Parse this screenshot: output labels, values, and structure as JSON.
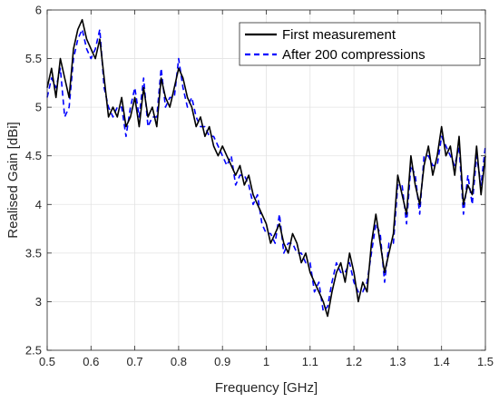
{
  "chart_data": {
    "type": "line",
    "xlabel": "Frequency [GHz]",
    "ylabel": "Realised Gain [dBi]",
    "xlim": [
      0.5,
      1.5
    ],
    "ylim": [
      2.5,
      6
    ],
    "xticks": [
      "0.5",
      "0.6",
      "0.7",
      "0.8",
      "0.9",
      "1",
      "1.1",
      "1.2",
      "1.3",
      "1.4",
      "1.5"
    ],
    "yticks": [
      "2.5",
      "3",
      "3.5",
      "4",
      "4.5",
      "5",
      "5.5",
      "6"
    ],
    "grid": true,
    "legend_position": "top-right",
    "series": [
      {
        "name": "First measurement",
        "color": "#000000",
        "style": "solid",
        "x": [
          0.5,
          0.51,
          0.52,
          0.53,
          0.54,
          0.55,
          0.56,
          0.57,
          0.58,
          0.59,
          0.6,
          0.61,
          0.62,
          0.63,
          0.64,
          0.65,
          0.66,
          0.67,
          0.68,
          0.69,
          0.7,
          0.71,
          0.72,
          0.73,
          0.74,
          0.75,
          0.76,
          0.77,
          0.78,
          0.79,
          0.8,
          0.81,
          0.82,
          0.83,
          0.84,
          0.85,
          0.86,
          0.87,
          0.88,
          0.89,
          0.9,
          0.91,
          0.92,
          0.93,
          0.94,
          0.95,
          0.96,
          0.97,
          0.98,
          0.99,
          1.0,
          1.01,
          1.02,
          1.03,
          1.04,
          1.05,
          1.06,
          1.07,
          1.08,
          1.09,
          1.1,
          1.11,
          1.12,
          1.13,
          1.14,
          1.15,
          1.16,
          1.17,
          1.18,
          1.19,
          1.2,
          1.21,
          1.22,
          1.23,
          1.24,
          1.25,
          1.26,
          1.27,
          1.28,
          1.29,
          1.3,
          1.31,
          1.32,
          1.33,
          1.34,
          1.35,
          1.36,
          1.37,
          1.38,
          1.39,
          1.4,
          1.41,
          1.42,
          1.43,
          1.44,
          1.45,
          1.46,
          1.47,
          1.48,
          1.49,
          1.5
        ],
        "y": [
          5.2,
          5.4,
          5.1,
          5.5,
          5.3,
          5.1,
          5.6,
          5.8,
          5.9,
          5.7,
          5.6,
          5.5,
          5.7,
          5.3,
          4.9,
          5.0,
          4.9,
          5.1,
          4.8,
          4.9,
          5.1,
          4.8,
          5.2,
          4.9,
          5.0,
          4.8,
          5.3,
          5.1,
          5.0,
          5.2,
          5.4,
          5.3,
          5.1,
          5.0,
          4.8,
          4.9,
          4.7,
          4.8,
          4.6,
          4.5,
          4.6,
          4.5,
          4.4,
          4.3,
          4.4,
          4.2,
          4.3,
          4.1,
          4.0,
          3.9,
          3.8,
          3.6,
          3.7,
          3.8,
          3.6,
          3.5,
          3.7,
          3.6,
          3.4,
          3.5,
          3.3,
          3.2,
          3.1,
          3.0,
          2.85,
          3.1,
          3.3,
          3.4,
          3.2,
          3.5,
          3.3,
          3.0,
          3.2,
          3.1,
          3.6,
          3.9,
          3.6,
          3.3,
          3.5,
          3.7,
          4.3,
          4.1,
          3.9,
          4.5,
          4.2,
          4.0,
          4.4,
          4.6,
          4.3,
          4.5,
          4.8,
          4.5,
          4.6,
          4.3,
          4.7,
          4.0,
          4.2,
          4.1,
          4.6,
          4.1,
          4.5
        ]
      },
      {
        "name": "After 200 compressions",
        "color": "#0000ff",
        "style": "dashed",
        "x": [
          0.5,
          0.51,
          0.52,
          0.53,
          0.54,
          0.55,
          0.56,
          0.57,
          0.58,
          0.59,
          0.6,
          0.61,
          0.62,
          0.63,
          0.64,
          0.65,
          0.66,
          0.67,
          0.68,
          0.69,
          0.7,
          0.71,
          0.72,
          0.73,
          0.74,
          0.75,
          0.76,
          0.77,
          0.78,
          0.79,
          0.8,
          0.81,
          0.82,
          0.83,
          0.84,
          0.85,
          0.86,
          0.87,
          0.88,
          0.89,
          0.9,
          0.91,
          0.92,
          0.93,
          0.94,
          0.95,
          0.96,
          0.97,
          0.98,
          0.99,
          1.0,
          1.01,
          1.02,
          1.03,
          1.04,
          1.05,
          1.06,
          1.07,
          1.08,
          1.09,
          1.1,
          1.11,
          1.12,
          1.13,
          1.14,
          1.15,
          1.16,
          1.17,
          1.18,
          1.19,
          1.2,
          1.21,
          1.22,
          1.23,
          1.24,
          1.25,
          1.26,
          1.27,
          1.28,
          1.29,
          1.3,
          1.31,
          1.32,
          1.33,
          1.34,
          1.35,
          1.36,
          1.37,
          1.38,
          1.39,
          1.4,
          1.41,
          1.42,
          1.43,
          1.44,
          1.45,
          1.46,
          1.47,
          1.48,
          1.49,
          1.5
        ],
        "y": [
          5.1,
          5.3,
          5.2,
          5.4,
          4.9,
          5.0,
          5.5,
          5.7,
          5.8,
          5.6,
          5.5,
          5.6,
          5.8,
          5.2,
          5.0,
          4.9,
          5.0,
          5.0,
          4.7,
          5.0,
          5.2,
          4.9,
          5.3,
          4.8,
          4.9,
          4.9,
          5.4,
          5.0,
          5.1,
          5.1,
          5.5,
          5.2,
          5.0,
          5.1,
          4.9,
          4.8,
          4.8,
          4.7,
          4.7,
          4.6,
          4.5,
          4.4,
          4.5,
          4.2,
          4.3,
          4.3,
          4.2,
          4.0,
          4.1,
          3.8,
          3.7,
          3.7,
          3.6,
          3.9,
          3.5,
          3.6,
          3.6,
          3.5,
          3.5,
          3.4,
          3.4,
          3.1,
          3.2,
          2.9,
          2.95,
          3.2,
          3.4,
          3.3,
          3.3,
          3.4,
          3.2,
          3.1,
          3.1,
          3.2,
          3.5,
          3.8,
          3.7,
          3.2,
          3.6,
          3.6,
          4.2,
          4.2,
          3.8,
          4.4,
          4.3,
          3.9,
          4.5,
          4.5,
          4.4,
          4.4,
          4.7,
          4.6,
          4.5,
          4.4,
          4.6,
          3.9,
          4.3,
          4.0,
          4.5,
          4.2,
          4.6
        ]
      }
    ]
  }
}
